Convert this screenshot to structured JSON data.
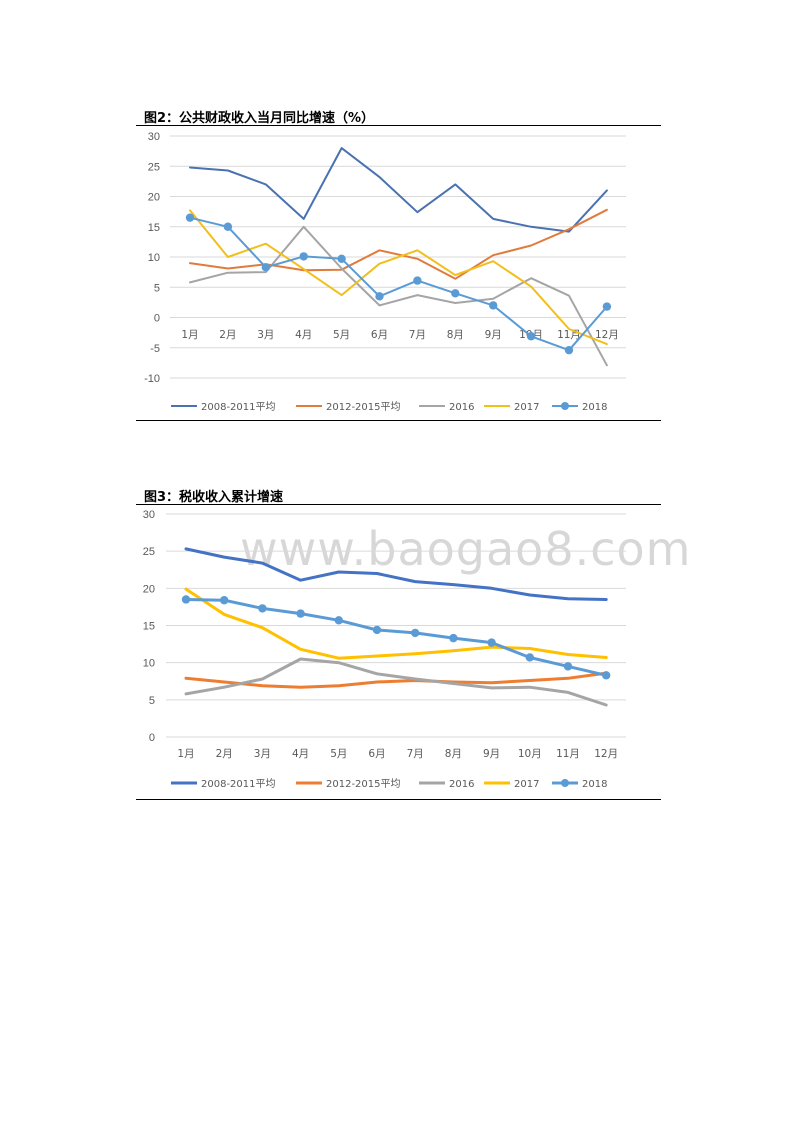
{
  "charts": [
    {
      "title": "图2：公共财政收入当月同比增速（%）"
    },
    {
      "title": "图3：税收收入累计增速"
    }
  ],
  "watermark": "www.baogao8.com",
  "chart_data": [
    {
      "type": "line",
      "title": "图2：公共财政收入当月同比增速（%）",
      "categories": [
        "1月",
        "2月",
        "3月",
        "4月",
        "5月",
        "6月",
        "7月",
        "8月",
        "9月",
        "10月",
        "11月",
        "12月"
      ],
      "ylim": [
        -10,
        30
      ],
      "yticks": [
        -10,
        -5,
        0,
        5,
        10,
        15,
        20,
        25,
        30
      ],
      "grid": true,
      "legend_position": "bottom",
      "series": [
        {
          "name": "2008-2011平均",
          "color": "#4A72B0",
          "markers": false,
          "values": [
            24.8,
            24.3,
            22.0,
            16.3,
            28.0,
            23.2,
            17.4,
            22.0,
            16.3,
            15.0,
            14.2,
            21.0
          ]
        },
        {
          "name": "2012-2015平均",
          "color": "#E07B3C",
          "markers": false,
          "values": [
            9.0,
            8.1,
            8.8,
            7.8,
            7.9,
            11.1,
            9.7,
            6.4,
            10.3,
            11.9,
            14.6,
            17.8
          ]
        },
        {
          "name": "2016",
          "color": "#A5A5A5",
          "markers": false,
          "values": [
            5.8,
            7.4,
            7.5,
            15.0,
            8.1,
            2.0,
            3.7,
            2.4,
            3.1,
            6.5,
            3.6,
            -7.9
          ]
        },
        {
          "name": "2017",
          "color": "#F2BF1A",
          "markers": false,
          "values": [
            17.7,
            10.0,
            12.2,
            8.0,
            3.7,
            8.9,
            11.1,
            7.0,
            9.3,
            5.1,
            -1.9,
            -4.4
          ]
        },
        {
          "name": "2018",
          "color": "#5B9BD5",
          "markers": true,
          "values": [
            16.5,
            15.0,
            8.3,
            10.1,
            9.7,
            3.5,
            6.1,
            4.0,
            2.0,
            -3.1,
            -5.4,
            1.8
          ]
        }
      ]
    },
    {
      "type": "line",
      "title": "图3：税收收入累计增速",
      "categories": [
        "1月",
        "2月",
        "3月",
        "4月",
        "5月",
        "6月",
        "7月",
        "8月",
        "9月",
        "10月",
        "11月",
        "12月"
      ],
      "ylim": [
        0,
        30
      ],
      "yticks": [
        0,
        5,
        10,
        15,
        20,
        25,
        30
      ],
      "grid": true,
      "legend_position": "bottom",
      "series": [
        {
          "name": "2008-2011平均",
          "color": "#4472C4",
          "markers": false,
          "values": [
            25.3,
            24.2,
            23.4,
            21.1,
            22.2,
            22.0,
            20.9,
            20.5,
            20.0,
            19.1,
            18.6,
            18.5
          ]
        },
        {
          "name": "2012-2015平均",
          "color": "#ED7D31",
          "markers": false,
          "values": [
            7.9,
            7.4,
            6.9,
            6.7,
            6.9,
            7.4,
            7.6,
            7.4,
            7.3,
            7.6,
            7.9,
            8.6
          ]
        },
        {
          "name": "2016",
          "color": "#A5A5A5",
          "markers": false,
          "values": [
            5.8,
            6.7,
            7.8,
            10.5,
            10.0,
            8.5,
            7.8,
            7.2,
            6.6,
            6.7,
            6.0,
            4.3
          ]
        },
        {
          "name": "2017",
          "color": "#FFC000",
          "markers": false,
          "values": [
            19.9,
            16.5,
            14.7,
            11.8,
            10.6,
            10.9,
            11.2,
            11.6,
            12.1,
            11.9,
            11.1,
            10.7
          ]
        },
        {
          "name": "2018",
          "color": "#5B9BD5",
          "markers": true,
          "values": [
            18.5,
            18.4,
            17.3,
            16.6,
            15.7,
            14.4,
            14.0,
            13.3,
            12.7,
            10.7,
            9.5,
            8.3
          ]
        }
      ]
    }
  ]
}
